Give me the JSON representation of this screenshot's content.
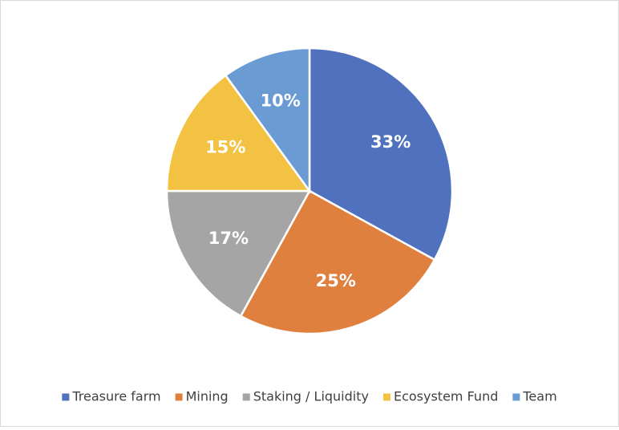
{
  "chart_data": {
    "type": "pie",
    "categories": [
      "Treasure farm",
      "Mining",
      "Staking / Liquidity",
      "Ecosystem Fund",
      "Team"
    ],
    "values": [
      33,
      25,
      17,
      15,
      10
    ],
    "value_labels": [
      "33%",
      "25%",
      "17%",
      "15%",
      "10%"
    ],
    "colors": [
      "#4f71be",
      "#e0803f",
      "#a5a5a5",
      "#f4c242",
      "#6a9bd3"
    ],
    "legend": "bottom"
  }
}
